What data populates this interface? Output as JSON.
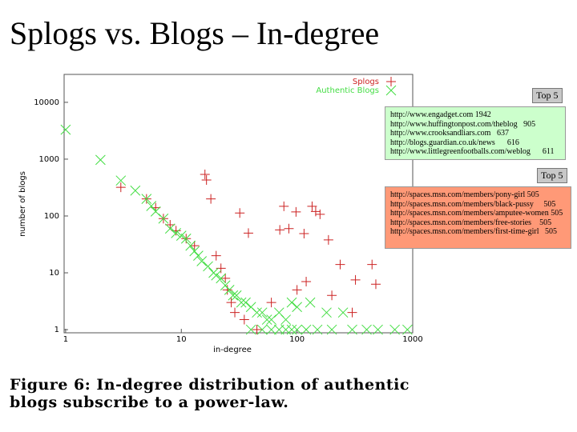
{
  "slide_title": "Splogs vs. Blogs – In-degree",
  "chart_data": {
    "type": "scatter",
    "xlabel": "in-degree",
    "ylabel": "number of blogs",
    "xlog": true,
    "ylog": true,
    "xlim": [
      0.97,
      1000
    ],
    "ylim": [
      0.88,
      31000
    ],
    "xticks": [
      1,
      10,
      100,
      1000
    ],
    "yticks": [
      1,
      10,
      100,
      1000,
      10000
    ],
    "legend": "upper right",
    "series": [
      {
        "name": "Splogs",
        "color": "#cc2222",
        "marker": "plus",
        "x": [
          3,
          5,
          6,
          7,
          8,
          9,
          11,
          13,
          16,
          16.5,
          18,
          20,
          22,
          24,
          25,
          27,
          29,
          32,
          38,
          35,
          45,
          60,
          71,
          77,
          85,
          98,
          100,
          115,
          120,
          135,
          145,
          158,
          187,
          200,
          236,
          320,
          445,
          480,
          300
        ],
        "values": [
          320,
          200,
          140,
          90,
          70,
          55,
          40,
          30,
          540,
          430,
          200,
          20,
          12,
          8,
          5,
          3,
          2,
          113,
          50,
          1.5,
          1,
          3,
          57,
          148,
          60,
          118,
          5,
          49,
          7,
          148,
          120,
          107,
          38,
          4,
          14,
          7.5,
          14,
          6.3,
          2
        ]
      },
      {
        "name": "Authentic Blogs",
        "color": "#44dd44",
        "marker": "cross",
        "x": [
          1,
          2,
          3,
          4,
          5,
          5.5,
          6,
          7,
          8,
          9,
          10,
          11,
          12,
          13,
          14,
          15,
          17,
          19,
          20,
          22,
          24,
          26,
          28,
          30,
          33,
          36,
          40,
          45,
          50,
          55,
          60,
          70,
          80,
          90,
          100,
          130,
          180,
          250,
          40,
          50,
          60,
          70,
          80,
          90,
          100,
          120,
          150,
          200,
          300,
          400,
          500,
          700,
          900
        ],
        "values": [
          3300,
          970,
          420,
          280,
          200,
          150,
          120,
          90,
          60,
          50,
          45,
          40,
          30,
          24,
          20,
          16,
          13,
          10,
          9,
          8,
          6,
          5,
          4,
          4,
          3,
          3,
          2.5,
          2,
          2,
          1.5,
          1.5,
          2,
          1.5,
          3,
          2.5,
          3,
          2,
          2,
          1,
          1,
          1,
          1,
          1,
          1,
          1,
          1,
          1,
          1,
          1,
          1,
          1,
          1,
          1
        ]
      }
    ]
  },
  "top_authentic": {
    "heading": "Top 5",
    "items": [
      "http://www.engadget.com 1942",
      "http://www.huffingtonpost.com/theblog   905",
      "http://www.crooksandliars.com   637",
      "http://blogs.guardian.co.uk/news      616",
      "http://www.littlegreenfootballs.com/weblog      611"
    ]
  },
  "top_splogs": {
    "heading": "Top 5",
    "items": [
      "http://spaces.msn.com/members/pony-girl 505",
      "http://spaces.msn.com/members/black-pussy     505",
      "http://spaces.msn.com/members/amputee-women 505",
      "http://spaces.msn.com/members/free-stories    505",
      "http://spaces.msn.com/members/first-time-girl   505"
    ]
  },
  "caption": "Figure 6: In-degree distribution of authentic blogs subscribe to a power-law."
}
